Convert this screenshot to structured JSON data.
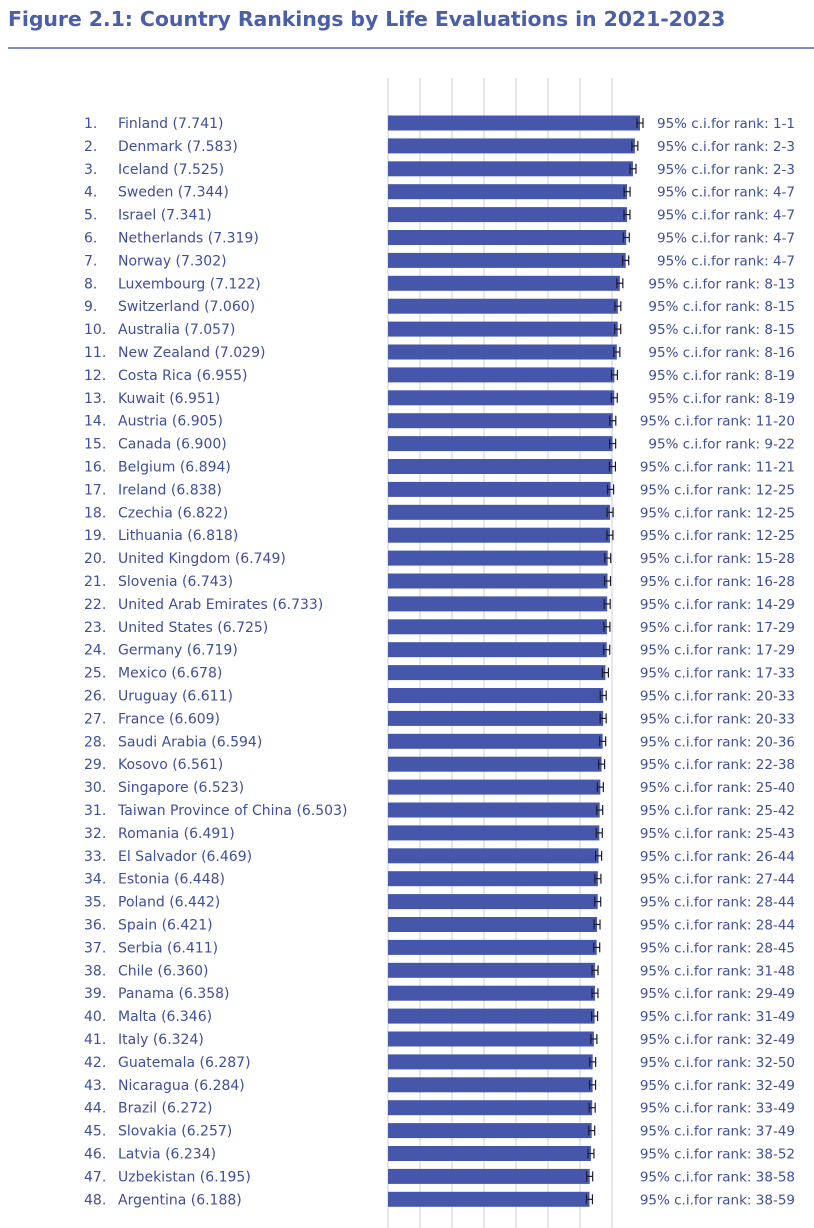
{
  "title": "Figure 2.1: Country Rankings by Life Evaluations in 2021-2023",
  "chart_data": {
    "type": "bar",
    "orientation": "horizontal",
    "title": "Figure 2.1: Country Rankings by Life Evaluations in 2021-2023",
    "bar_color": "#4657ab",
    "text_color": "#3f4f9a",
    "rows": [
      {
        "rank": "1.",
        "label": "Finland (7.741)",
        "value": 7.741,
        "ci": "95% c.i.for rank: 1-1"
      },
      {
        "rank": "2.",
        "label": "Denmark (7.583)",
        "value": 7.583,
        "ci": "95% c.i.for rank: 2-3"
      },
      {
        "rank": "3.",
        "label": "Iceland (7.525)",
        "value": 7.525,
        "ci": "95% c.i.for rank: 2-3"
      },
      {
        "rank": "4.",
        "label": "Sweden (7.344)",
        "value": 7.344,
        "ci": "95% c.i.for rank: 4-7"
      },
      {
        "rank": "5.",
        "label": "Israel (7.341)",
        "value": 7.341,
        "ci": "95% c.i.for rank: 4-7"
      },
      {
        "rank": "6.",
        "label": "Netherlands (7.319)",
        "value": 7.319,
        "ci": "95% c.i.for rank: 4-7"
      },
      {
        "rank": "7.",
        "label": "Norway (7.302)",
        "value": 7.302,
        "ci": "95% c.i.for rank: 4-7"
      },
      {
        "rank": "8.",
        "label": "Luxembourg (7.122)",
        "value": 7.122,
        "ci": "95% c.i.for rank: 8-13"
      },
      {
        "rank": "9.",
        "label": "Switzerland (7.060)",
        "value": 7.06,
        "ci": "95% c.i.for rank: 8-15"
      },
      {
        "rank": "10.",
        "label": "Australia (7.057)",
        "value": 7.057,
        "ci": "95% c.i.for rank: 8-15"
      },
      {
        "rank": "11.",
        "label": "New Zealand (7.029)",
        "value": 7.029,
        "ci": "95% c.i.for rank: 8-16"
      },
      {
        "rank": "12.",
        "label": "Costa Rica (6.955)",
        "value": 6.955,
        "ci": "95% c.i.for rank: 8-19"
      },
      {
        "rank": "13.",
        "label": "Kuwait (6.951)",
        "value": 6.951,
        "ci": "95% c.i.for rank: 8-19"
      },
      {
        "rank": "14.",
        "label": "Austria (6.905)",
        "value": 6.905,
        "ci": "95% c.i.for rank: 11-20"
      },
      {
        "rank": "15.",
        "label": "Canada (6.900)",
        "value": 6.9,
        "ci": "95% c.i.for rank: 9-22"
      },
      {
        "rank": "16.",
        "label": "Belgium (6.894)",
        "value": 6.894,
        "ci": "95% c.i.for rank: 11-21"
      },
      {
        "rank": "17.",
        "label": "Ireland (6.838)",
        "value": 6.838,
        "ci": "95% c.i.for rank: 12-25"
      },
      {
        "rank": "18.",
        "label": "Czechia (6.822)",
        "value": 6.822,
        "ci": "95% c.i.for rank: 12-25"
      },
      {
        "rank": "19.",
        "label": "Lithuania (6.818)",
        "value": 6.818,
        "ci": "95% c.i.for rank: 12-25"
      },
      {
        "rank": "20.",
        "label": "United Kingdom (6.749)",
        "value": 6.749,
        "ci": "95% c.i.for rank: 15-28"
      },
      {
        "rank": "21.",
        "label": "Slovenia (6.743)",
        "value": 6.743,
        "ci": "95% c.i.for rank: 16-28"
      },
      {
        "rank": "22.",
        "label": "United Arab Emirates (6.733)",
        "value": 6.733,
        "ci": "95% c.i.for rank: 14-29"
      },
      {
        "rank": "23.",
        "label": "United States (6.725)",
        "value": 6.725,
        "ci": "95% c.i.for rank: 17-29"
      },
      {
        "rank": "24.",
        "label": "Germany (6.719)",
        "value": 6.719,
        "ci": "95% c.i.for rank: 17-29"
      },
      {
        "rank": "25.",
        "label": "Mexico (6.678)",
        "value": 6.678,
        "ci": "95% c.i.for rank: 17-33"
      },
      {
        "rank": "26.",
        "label": "Uruguay (6.611)",
        "value": 6.611,
        "ci": "95% c.i.for rank: 20-33"
      },
      {
        "rank": "27.",
        "label": "France (6.609)",
        "value": 6.609,
        "ci": "95% c.i.for rank: 20-33"
      },
      {
        "rank": "28.",
        "label": "Saudi Arabia (6.594)",
        "value": 6.594,
        "ci": "95% c.i.for rank: 20-36"
      },
      {
        "rank": "29.",
        "label": "Kosovo (6.561)",
        "value": 6.561,
        "ci": "95% c.i.for rank: 22-38"
      },
      {
        "rank": "30.",
        "label": "Singapore (6.523)",
        "value": 6.523,
        "ci": "95% c.i.for rank: 25-40"
      },
      {
        "rank": "31.",
        "label": "Taiwan Province of China (6.503)",
        "value": 6.503,
        "ci": "95% c.i.for rank: 25-42"
      },
      {
        "rank": "32.",
        "label": "Romania (6.491)",
        "value": 6.491,
        "ci": "95% c.i.for rank: 25-43"
      },
      {
        "rank": "33.",
        "label": "El Salvador (6.469)",
        "value": 6.469,
        "ci": "95% c.i.for rank: 26-44"
      },
      {
        "rank": "34.",
        "label": "Estonia (6.448)",
        "value": 6.448,
        "ci": "95% c.i.for rank: 27-44"
      },
      {
        "rank": "35.",
        "label": "Poland (6.442)",
        "value": 6.442,
        "ci": "95% c.i.for rank: 28-44"
      },
      {
        "rank": "36.",
        "label": "Spain (6.421)",
        "value": 6.421,
        "ci": "95% c.i.for rank: 28-44"
      },
      {
        "rank": "37.",
        "label": "Serbia (6.411)",
        "value": 6.411,
        "ci": "95% c.i.for rank: 28-45"
      },
      {
        "rank": "38.",
        "label": "Chile (6.360)",
        "value": 6.36,
        "ci": "95% c.i.for rank: 31-48"
      },
      {
        "rank": "39.",
        "label": "Panama (6.358)",
        "value": 6.358,
        "ci": "95% c.i.for rank: 29-49"
      },
      {
        "rank": "40.",
        "label": "Malta (6.346)",
        "value": 6.346,
        "ci": "95% c.i.for rank: 31-49"
      },
      {
        "rank": "41.",
        "label": "Italy (6.324)",
        "value": 6.324,
        "ci": "95% c.i.for rank: 32-49"
      },
      {
        "rank": "42.",
        "label": "Guatemala (6.287)",
        "value": 6.287,
        "ci": "95% c.i.for rank: 32-50"
      },
      {
        "rank": "43.",
        "label": "Nicaragua (6.284)",
        "value": 6.284,
        "ci": "95% c.i.for rank: 32-49"
      },
      {
        "rank": "44.",
        "label": "Brazil (6.272)",
        "value": 6.272,
        "ci": "95% c.i.for rank: 33-49"
      },
      {
        "rank": "45.",
        "label": "Slovakia (6.257)",
        "value": 6.257,
        "ci": "95% c.i.for rank: 37-49"
      },
      {
        "rank": "46.",
        "label": "Latvia (6.234)",
        "value": 6.234,
        "ci": "95% c.i.for rank: 38-52"
      },
      {
        "rank": "47.",
        "label": "Uzbekistan (6.195)",
        "value": 6.195,
        "ci": "95% c.i.for rank: 38-58"
      },
      {
        "rank": "48.",
        "label": "Argentina (6.188)",
        "value": 6.188,
        "ci": "95% c.i.for rank: 38-59"
      }
    ]
  }
}
